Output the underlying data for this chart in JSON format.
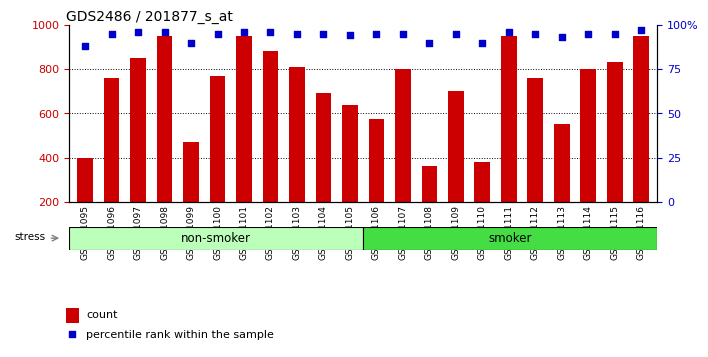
{
  "title": "GDS2486 / 201877_s_at",
  "samples": [
    "GSM101095",
    "GSM101096",
    "GSM101097",
    "GSM101098",
    "GSM101099",
    "GSM101100",
    "GSM101101",
    "GSM101102",
    "GSM101103",
    "GSM101104",
    "GSM101105",
    "GSM101106",
    "GSM101107",
    "GSM101108",
    "GSM101109",
    "GSM101110",
    "GSM101111",
    "GSM101112",
    "GSM101113",
    "GSM101114",
    "GSM101115",
    "GSM101116"
  ],
  "counts": [
    400,
    760,
    850,
    950,
    470,
    770,
    950,
    880,
    810,
    690,
    640,
    575,
    800,
    360,
    700,
    380,
    950,
    760,
    550,
    800,
    830,
    950
  ],
  "percentile_ranks": [
    88,
    95,
    96,
    96,
    90,
    95,
    96,
    96,
    95,
    95,
    94,
    95,
    95,
    90,
    95,
    90,
    96,
    95,
    93,
    95,
    95,
    97
  ],
  "non_smoker_count": 11,
  "smoker_count": 11,
  "bar_color": "#cc0000",
  "dot_color": "#0000cc",
  "non_smoker_color": "#bbffbb",
  "smoker_color": "#44dd44",
  "ylim_left": [
    200,
    1000
  ],
  "ylim_right": [
    0,
    100
  ],
  "yticks_left": [
    200,
    400,
    600,
    800,
    1000
  ],
  "yticks_right": [
    0,
    25,
    50,
    75,
    100
  ],
  "grid_ticks": [
    400,
    600,
    800
  ],
  "background_color": "#ffffff",
  "title_fontsize": 10,
  "tick_label_fontsize": 6.5,
  "legend_fontsize": 8,
  "stress_label": "stress",
  "non_smoker_label": "non-smoker",
  "smoker_label": "smoker",
  "count_legend": "count",
  "percentile_legend": "percentile rank within the sample"
}
